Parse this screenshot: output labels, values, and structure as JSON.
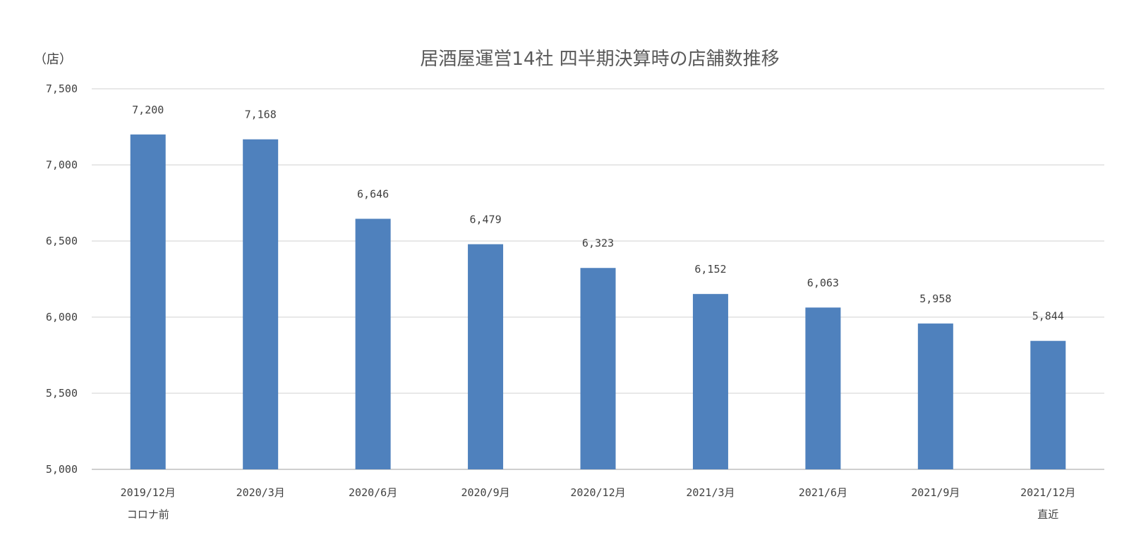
{
  "chart_data": {
    "type": "bar",
    "title": "居酒屋運営14社 四半期決算時の店舗数推移",
    "unit_label": "（店）",
    "categories": [
      "2019/12月",
      "2020/3月",
      "2020/6月",
      "2020/9月",
      "2020/12月",
      "2021/3月",
      "2021/6月",
      "2021/9月",
      "2021/12月"
    ],
    "category_sublabels": [
      "コロナ前",
      "",
      "",
      "",
      "",
      "",
      "",
      "",
      "直近"
    ],
    "values": [
      7200,
      7168,
      6646,
      6479,
      6323,
      6152,
      6063,
      5958,
      5844
    ],
    "data_labels": [
      "7,200",
      "7,168",
      "6,646",
      "6,479",
      "6,323",
      "6,152",
      "6,063",
      "5,958",
      "5,844"
    ],
    "ylim": [
      5000,
      7500
    ],
    "yticks": [
      5000,
      5500,
      6000,
      6500,
      7000,
      7500
    ],
    "ytick_labels": [
      "5,000",
      "5,500",
      "6,000",
      "6,500",
      "7,000",
      "7,500"
    ],
    "xlabel": "",
    "ylabel": "",
    "grid": true,
    "legend": false,
    "colors": {
      "bar": "#4f81bd",
      "grid": "#d9d9d9",
      "text": "#404040"
    }
  }
}
